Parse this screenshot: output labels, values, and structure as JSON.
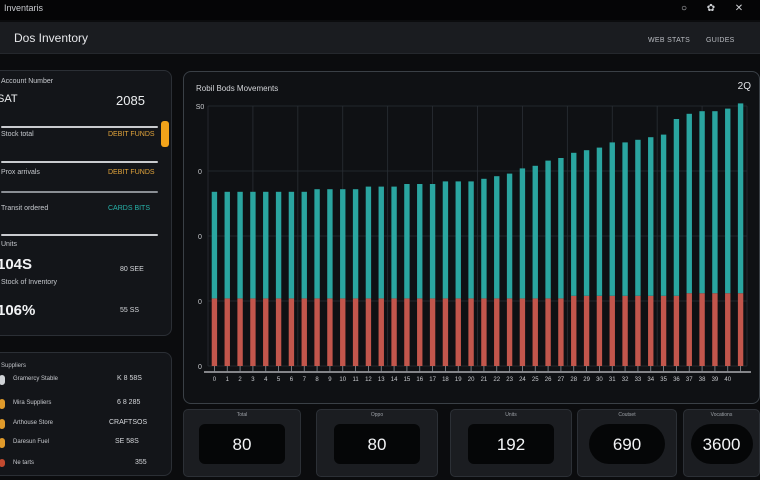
{
  "window": {
    "title": "Inventaris"
  },
  "app": {
    "title": "Dos Inventory",
    "nav": [
      "WEB STATS",
      "GUIDES"
    ]
  },
  "inventory_panel": {
    "header": "Account Number",
    "stat_label": "SAT",
    "stat_value": "2085",
    "rows": [
      {
        "label": "Stock total",
        "value": "DEBIT FUNDS"
      },
      {
        "label": "Prox arrivals",
        "value": "DEBIT FUNDS"
      },
      {
        "label": "Transit ordered",
        "value": "CARDS BITS"
      }
    ],
    "section_label": "Units",
    "big_value": "104S",
    "big_side": "80 SEE",
    "sub_label": "Stock of Inventory",
    "second_value": "106%",
    "second_side": "55 SS"
  },
  "list_panel": {
    "title": "Suppliers",
    "items": [
      {
        "label": "Gramercy Stable",
        "value": "K 8 58S",
        "icon_color": "#cfd2d6"
      },
      {
        "label": "Mira Suppliers",
        "value": "6 8 285",
        "icon_color": "#e09a2a"
      },
      {
        "label": "Arthouse Store",
        "value": "CRAFTSOS",
        "icon_color": "#e09a2a"
      },
      {
        "label": "Daresun Fuel",
        "value": "SE 58S",
        "icon_color": "#e09a2a"
      },
      {
        "label": "Ne tarts",
        "value": "355",
        "icon_color": "#c24a2f"
      }
    ]
  },
  "chart": {
    "title": "Robil Bods Movements",
    "corner": "2Q",
    "colors": {
      "top": "#2aa5a0",
      "bottom": "#c2564c",
      "grid": "#2a2f35",
      "axis": "#c9cbcf"
    }
  },
  "chart_data": {
    "type": "bar",
    "title": "Robil Bods Movements",
    "ylabel": "",
    "xlabel": "",
    "y_ticks": [
      "0",
      "0",
      "0",
      "0",
      "S0"
    ],
    "ylim": [
      0,
      100
    ],
    "categories": [
      "1",
      "2",
      "3",
      "4",
      "5",
      "6",
      "7",
      "8",
      "9",
      "10",
      "11",
      "12",
      "13",
      "14",
      "15",
      "16",
      "17",
      "18",
      "19",
      "20",
      "21",
      "22",
      "23",
      "24",
      "25",
      "26",
      "27",
      "28",
      "29",
      "30",
      "31",
      "32",
      "33",
      "34",
      "35",
      "36",
      "37",
      "38",
      "39",
      "40",
      "41",
      "42"
    ],
    "series": [
      {
        "values": [
          41,
          41,
          41,
          41,
          41,
          41,
          41,
          41,
          42,
          42,
          42,
          42,
          43,
          43,
          43,
          44,
          44,
          44,
          45,
          45,
          45,
          46,
          47,
          48,
          50,
          51,
          53,
          54,
          55,
          56,
          57,
          59,
          59,
          60,
          61,
          62,
          68,
          69,
          70,
          70,
          71,
          73
        ]
      },
      {
        "values": [
          26,
          26,
          26,
          26,
          26,
          26,
          26,
          26,
          26,
          26,
          26,
          26,
          26,
          26,
          26,
          26,
          26,
          26,
          26,
          26,
          26,
          26,
          26,
          26,
          26,
          26,
          26,
          26,
          27,
          27,
          27,
          27,
          27,
          27,
          27,
          27,
          27,
          28,
          28,
          28,
          28,
          28
        ]
      }
    ],
    "x_tick_labels": [
      "0",
      "1",
      "2",
      "3",
      "4",
      "5",
      "6",
      "7",
      "8",
      "9",
      "10",
      "11",
      "12",
      "13",
      "14",
      "15",
      "16",
      "17",
      "18",
      "19",
      "20",
      "21",
      "22",
      "23",
      "24",
      "25",
      "26",
      "27",
      "28",
      "29",
      "30",
      "31",
      "32",
      "33",
      "34",
      "35",
      "36",
      "37",
      "38",
      "39",
      "40"
    ]
  },
  "cards": [
    {
      "label": "Total",
      "value": "80"
    },
    {
      "label": "Oppo",
      "value": "80"
    },
    {
      "label": "Units",
      "value": "192"
    },
    {
      "label": "Coutset",
      "value": "690"
    },
    {
      "label": "Vocations",
      "value": "3600"
    }
  ]
}
